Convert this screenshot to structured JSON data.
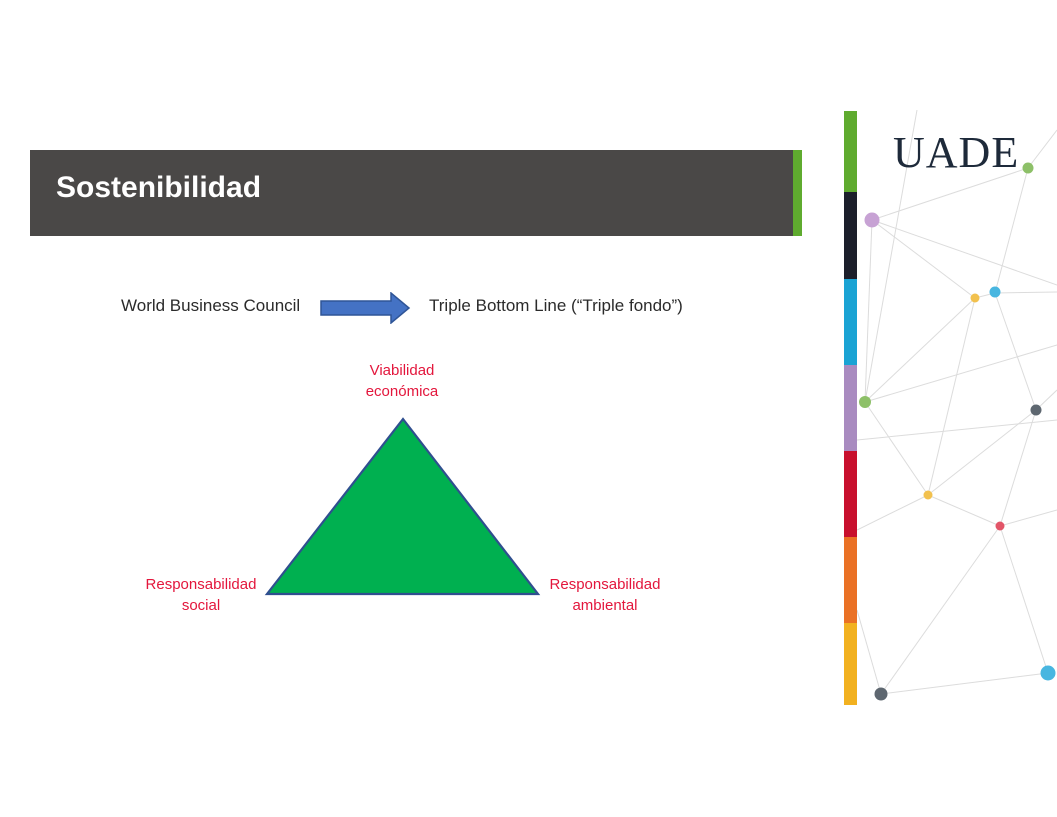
{
  "slide": {
    "title": "Sostenibilidad",
    "logo_text": "UADE"
  },
  "flow": {
    "from": "World Business Council",
    "to": "Triple Bottom Line (“Triple fondo”)",
    "arrow_color": "#4472c4"
  },
  "triangle": {
    "fill_color": "#00b050",
    "label_color": "#e3163c",
    "top_label": [
      "Viabilidad",
      "económica"
    ],
    "left_label": [
      "Responsabilidad",
      "social"
    ],
    "right_label": [
      "Responsabilidad",
      "ambiental"
    ]
  },
  "theme": {
    "title_bar_color": "#4a4847",
    "title_accent_color": "#5fab2f",
    "stripe_colors": [
      "#5fab2f",
      "#1c1f2b",
      "#1aa3d4",
      "#a98bc0",
      "#c8102e",
      "#ea7125",
      "#f2b120"
    ],
    "dot_colors": [
      "#8dc068",
      "#c7a2d4",
      "#48b6e0",
      "#f2c14e",
      "#5e6770",
      "#e25568"
    ]
  }
}
